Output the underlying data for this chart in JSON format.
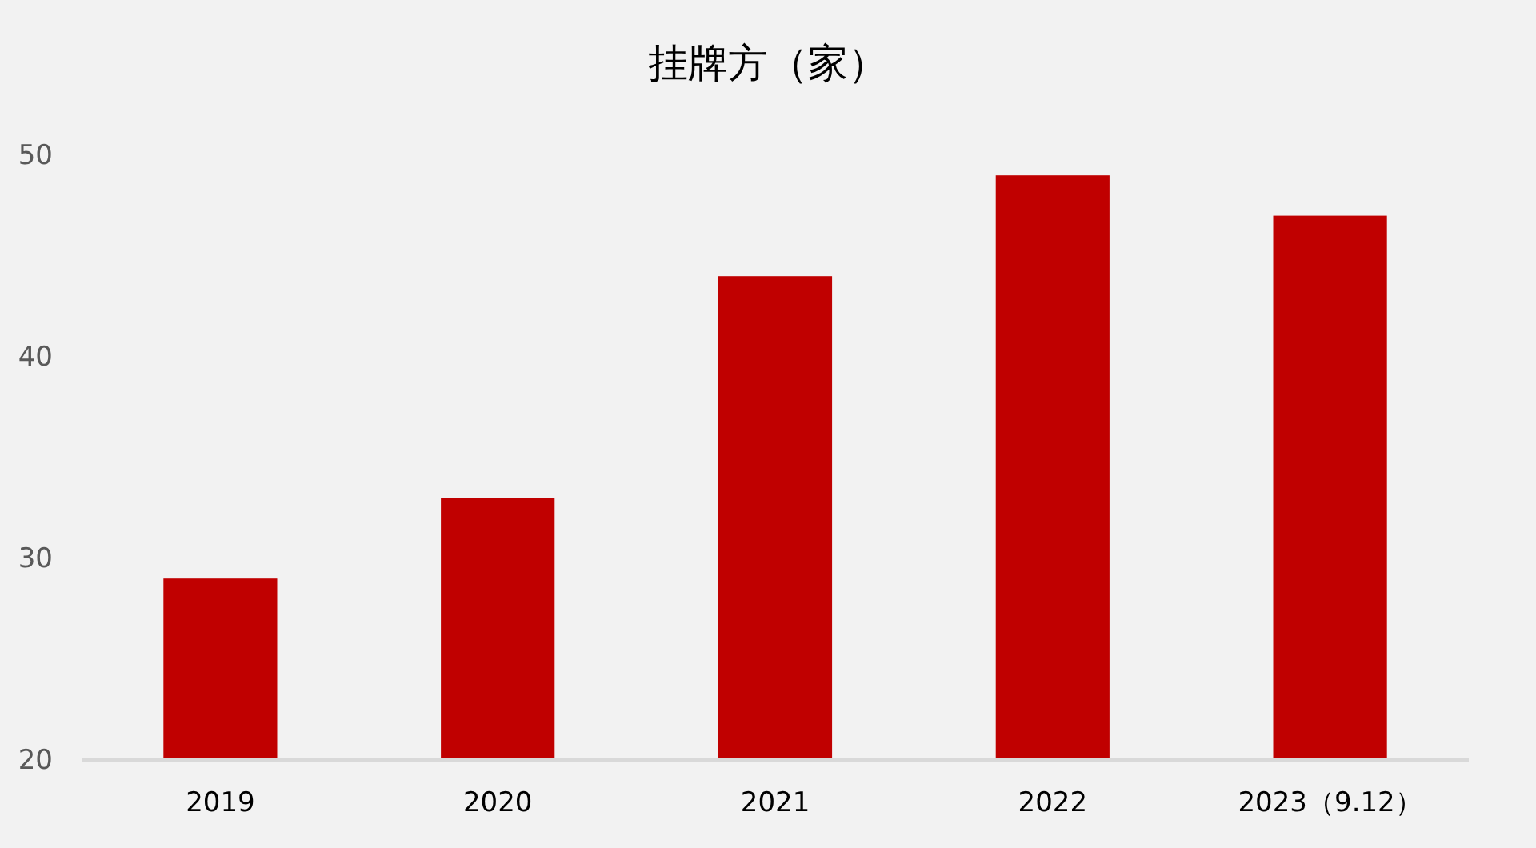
{
  "chart_data": {
    "type": "bar",
    "title": "挂牌方（家）",
    "categories": [
      "2019",
      "2020",
      "2021",
      "2022",
      "2023（9.12）"
    ],
    "values": [
      29,
      33,
      44,
      49,
      47
    ],
    "color": "#c00000",
    "ylim": [
      20,
      50
    ],
    "yticks": [
      20,
      30,
      40,
      50
    ],
    "grid": false
  }
}
